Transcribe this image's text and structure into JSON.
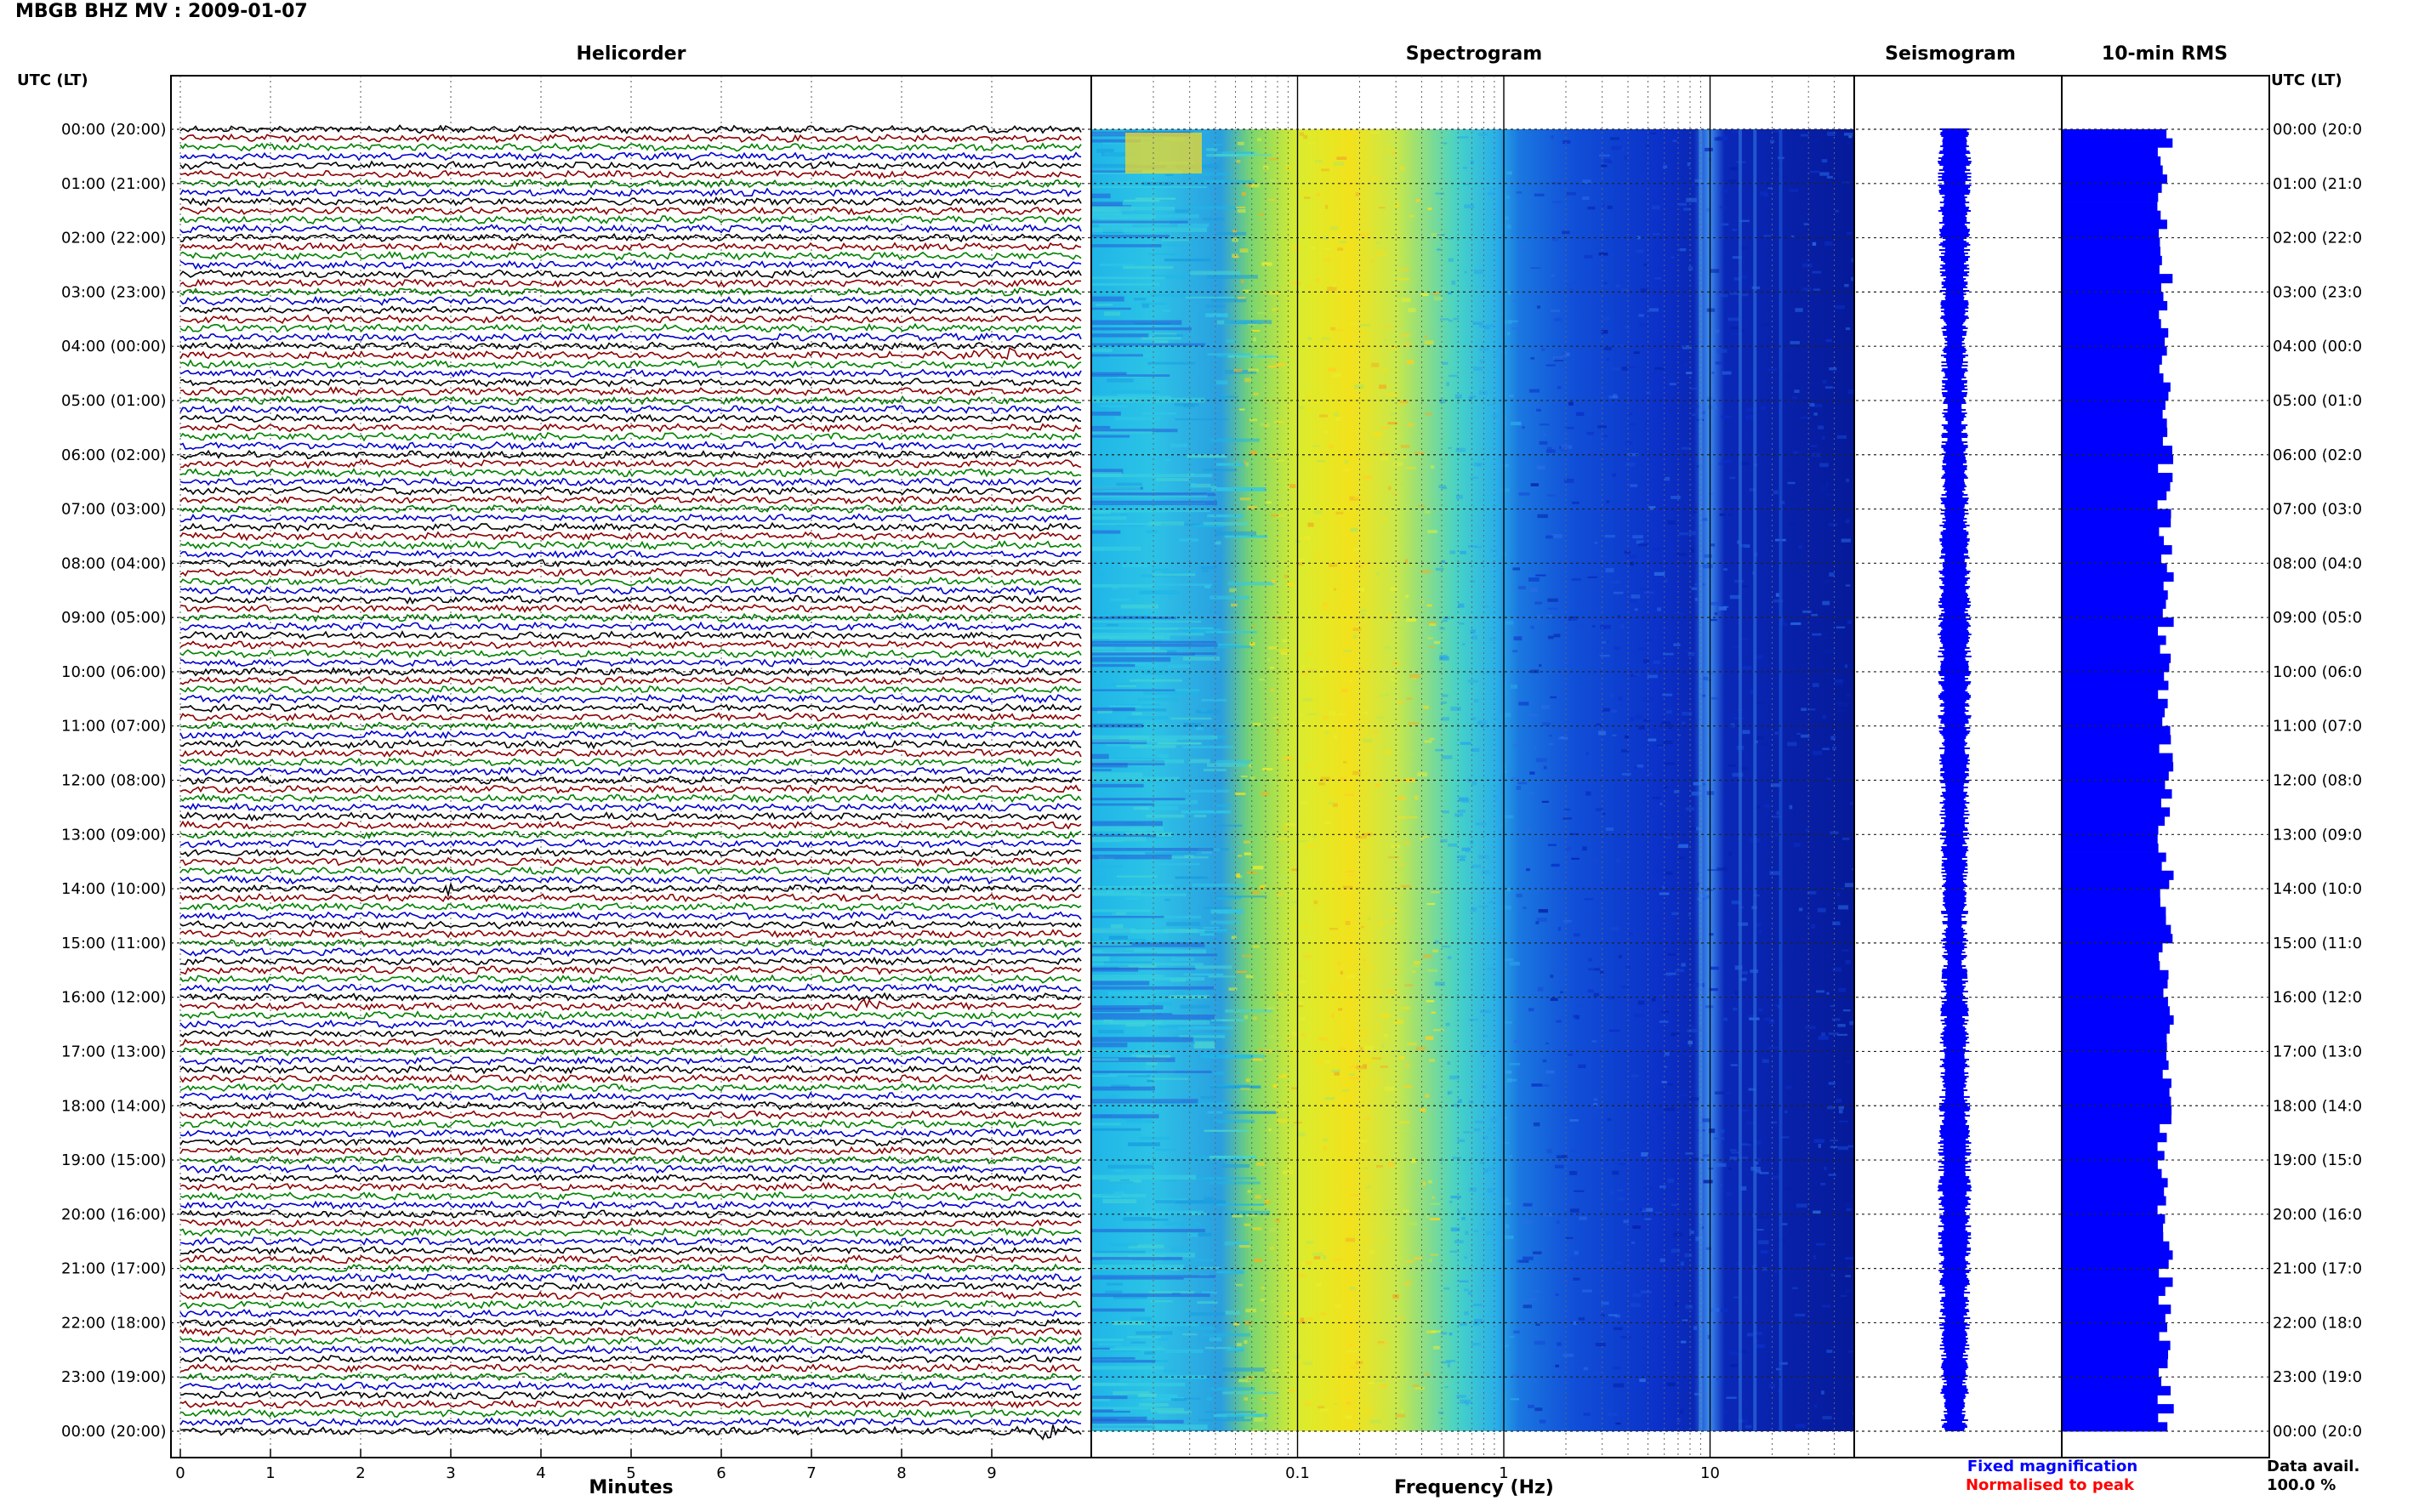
{
  "title": "MBGB BHZ MV : 2009-01-07",
  "panels": {
    "helicorder": "Helicorder",
    "spectrogram": "Spectrogram",
    "seismogram": "Seismogram",
    "rms": "10-min RMS"
  },
  "time_header_left": "UTC (LT)",
  "time_header_right": "UTC (LT)",
  "time_labels": [
    "00:00 (20:00)",
    "01:00 (21:00)",
    "02:00 (22:00)",
    "03:00 (23:00)",
    "04:00 (00:00)",
    "05:00 (01:00)",
    "06:00 (02:00)",
    "07:00 (03:00)",
    "08:00 (04:00)",
    "09:00 (05:00)",
    "10:00 (06:00)",
    "11:00 (07:00)",
    "12:00 (08:00)",
    "13:00 (09:00)",
    "14:00 (10:00)",
    "15:00 (11:00)",
    "16:00 (12:00)",
    "17:00 (13:00)",
    "18:00 (14:00)",
    "19:00 (15:00)",
    "20:00 (16:00)",
    "21:00 (17:00)",
    "22:00 (18:00)",
    "23:00 (19:00)",
    "00:00 (20:00)"
  ],
  "time_labels_right": [
    "00:00 (20:0",
    "01:00 (21:0",
    "02:00 (22:0",
    "03:00 (23:0",
    "04:00 (00:0",
    "05:00 (01:0",
    "06:00 (02:0",
    "07:00 (03:0",
    "08:00 (04:0",
    "09:00 (05:0",
    "10:00 (06:0",
    "11:00 (07:0",
    "12:00 (08:0",
    "13:00 (09:0",
    "14:00 (10:0",
    "15:00 (11:0",
    "16:00 (12:0",
    "17:00 (13:0",
    "18:00 (14:0",
    "19:00 (15:0",
    "20:00 (16:0",
    "21:00 (17:0",
    "22:00 (18:0",
    "23:00 (19:0",
    "00:00 (20:0"
  ],
  "legend": {
    "fixed": "Fixed magnification",
    "normalised": "Normalised to peak",
    "fixed_color": "#0000ff",
    "normalised_color": "#ff0000"
  },
  "data_avail_label": "Data avail.",
  "data_avail_value": "100.0 %",
  "colors": {
    "trace_cycle": [
      "#000000",
      "#8b0000",
      "#008000",
      "#0000cd"
    ],
    "seismogram": "#0000ff",
    "rms": "#0000ff"
  },
  "chart_data": [
    {
      "type": "line",
      "name": "helicorder",
      "title": "Helicorder",
      "xlabel": "Minutes",
      "x_ticks": [
        "0",
        "1",
        "2",
        "3",
        "4",
        "5",
        "6",
        "7",
        "8",
        "9"
      ],
      "xlim": [
        0,
        10
      ],
      "rows_per_hour": 6,
      "hours": 24,
      "events": [
        {
          "hour": 14,
          "row": 0,
          "minute": 3.0
        },
        {
          "hour": 16,
          "row": 1,
          "minute": 7.6
        },
        {
          "hour": 4,
          "row": 1,
          "minute": 9.1
        },
        {
          "hour": 24,
          "row": 0,
          "minute": 9.6
        }
      ]
    },
    {
      "type": "heatmap",
      "name": "spectrogram",
      "title": "Spectrogram",
      "xlabel": "Frequency (Hz)",
      "x_scale": "log",
      "xlim": [
        0.01,
        50
      ],
      "x_ticks": [
        "0.1",
        "1",
        "10"
      ],
      "x_tick_values": [
        0.1,
        1,
        10
      ],
      "peak_band_hz": [
        0.15,
        0.5
      ],
      "hours": 24
    },
    {
      "type": "line",
      "name": "seismogram",
      "title": "Seismogram",
      "hours": 24
    },
    {
      "type": "bar",
      "name": "rms",
      "title": "10-min RMS",
      "orientation": "horizontal",
      "bins": 144,
      "level": 0.5
    }
  ]
}
